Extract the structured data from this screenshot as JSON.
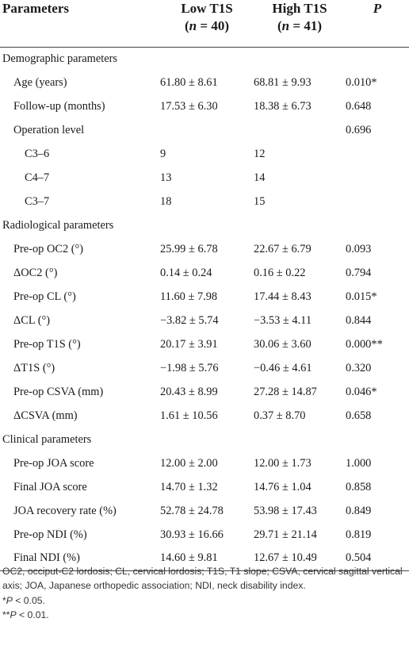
{
  "header": {
    "col_parameters": "Parameters",
    "col_low": "Low T1S",
    "col_low_n": "(n = 40)",
    "col_high": "High T1S",
    "col_high_n": "(n = 41)",
    "col_p": "P"
  },
  "rows": [
    {
      "label": "Demographic parameters",
      "low": "",
      "high": "",
      "p": ""
    },
    {
      "label": "Age (years)",
      "low": "61.80 ± 8.61",
      "high": "68.81 ± 9.93",
      "p": "0.010*"
    },
    {
      "label": "Follow-up (months)",
      "low": "17.53 ± 6.30",
      "high": "18.38 ± 6.73",
      "p": "0.648"
    },
    {
      "label": "Operation level",
      "low": "",
      "high": "",
      "p": "0.696"
    },
    {
      "label": "C3–6",
      "low": "9",
      "high": "12",
      "p": ""
    },
    {
      "label": "C4–7",
      "low": "13",
      "high": "14",
      "p": ""
    },
    {
      "label": "C3–7",
      "low": "18",
      "high": "15",
      "p": ""
    },
    {
      "label": "Radiological parameters",
      "low": "",
      "high": "",
      "p": ""
    },
    {
      "label": "Pre-op OC2 (°)",
      "low": "25.99 ± 6.78",
      "high": "22.67 ± 6.79",
      "p": "0.093"
    },
    {
      "label": "ΔOC2 (°)",
      "low": "0.14 ± 0.24",
      "high": "0.16 ± 0.22",
      "p": "0.794"
    },
    {
      "label": "Pre-op CL (°)",
      "low": "11.60 ± 7.98",
      "high": "17.44 ± 8.43",
      "p": "0.015*"
    },
    {
      "label": "ΔCL (°)",
      "low": "−3.82 ± 5.74",
      "high": "−3.53 ± 4.11",
      "p": "0.844"
    },
    {
      "label": "Pre-op T1S (°)",
      "low": "20.17 ± 3.91",
      "high": "30.06 ± 3.60",
      "p": "0.000**"
    },
    {
      "label": "ΔT1S (°)",
      "low": "−1.98 ± 5.76",
      "high": "−0.46 ± 4.61",
      "p": "0.320"
    },
    {
      "label": "Pre-op CSVA (mm)",
      "low": "20.43 ± 8.99",
      "high": "27.28 ± 14.87",
      "p": "0.046*"
    },
    {
      "label": "ΔCSVA (mm)",
      "low": "1.61 ± 10.56",
      "high": "0.37 ± 8.70",
      "p": "0.658"
    },
    {
      "label": "Clinical parameters",
      "low": "",
      "high": "",
      "p": ""
    },
    {
      "label": "Pre-op JOA score",
      "low": "12.00 ± 2.00",
      "high": "12.00 ± 1.73",
      "p": "1.000"
    },
    {
      "label": "Final JOA score",
      "low": "14.70 ± 1.32",
      "high": "14.76 ± 1.04",
      "p": "0.858"
    },
    {
      "label": "JOA recovery rate (%)",
      "low": "52.78 ± 24.78",
      "high": "53.98 ± 17.43",
      "p": "0.849"
    },
    {
      "label": "Pre-op NDI (%)",
      "low": "30.93 ± 16.66",
      "high": "29.71 ± 21.14",
      "p": "0.819"
    },
    {
      "label": "Final NDI (%)",
      "low": "14.60 ± 9.81",
      "high": "12.67 ± 10.49",
      "p": "0.504"
    }
  ],
  "footnotes": {
    "abbrev": "OC2, occiput-C2 lordosis; CL, cervical lordosis; T1S, T1 slope; CSVA, cervical sagittal vertical axis; JOA, Japanese orthopedic association; NDI, neck disability index.",
    "sig1_mark": "*",
    "sig1_p": "P",
    "sig1_rest": " < 0.05.",
    "sig2_mark": "**",
    "sig2_p": "P",
    "sig2_rest": " < 0.01."
  }
}
